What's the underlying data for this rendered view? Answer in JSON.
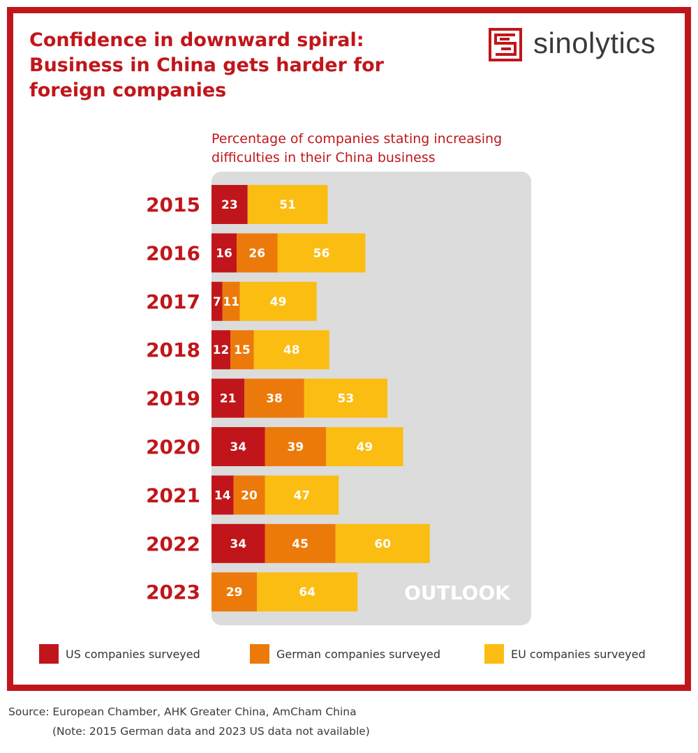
{
  "title": {
    "bold": "Confidence in downward spiral:",
    "rest": " Business in China gets harder for foreign companies"
  },
  "logo": {
    "text": "sinolytics",
    "color": "#c0161b"
  },
  "chart_data": {
    "type": "bar",
    "orientation": "horizontal",
    "stacked": true,
    "title": "Percentage of companies stating increasing difficulties in their China business",
    "categories": [
      "2015",
      "2016",
      "2017",
      "2018",
      "2019",
      "2020",
      "2021",
      "2022",
      "2023"
    ],
    "series": [
      {
        "name": "US companies surveyed",
        "color": "#c0161b",
        "values": [
          23,
          16,
          7,
          12,
          21,
          34,
          14,
          34,
          null
        ]
      },
      {
        "name": "German companies surveyed",
        "color": "#ec7a0a",
        "values": [
          null,
          26,
          11,
          15,
          38,
          39,
          20,
          45,
          29
        ]
      },
      {
        "name": "EU companies surveyed",
        "color": "#fbbd12",
        "values": [
          51,
          56,
          49,
          48,
          53,
          49,
          47,
          60,
          64
        ]
      }
    ],
    "annotation": "OUTLOOK",
    "grid": false,
    "legend_position": "bottom",
    "panel_color": "#dcdcdc",
    "category_label_color": "#c0161b",
    "value_label_color": "#ffffff"
  },
  "source": "Source: European Chamber, AHK Greater China, AmCham China",
  "note": "(Note: 2015 German data and 2023 US data not available)"
}
